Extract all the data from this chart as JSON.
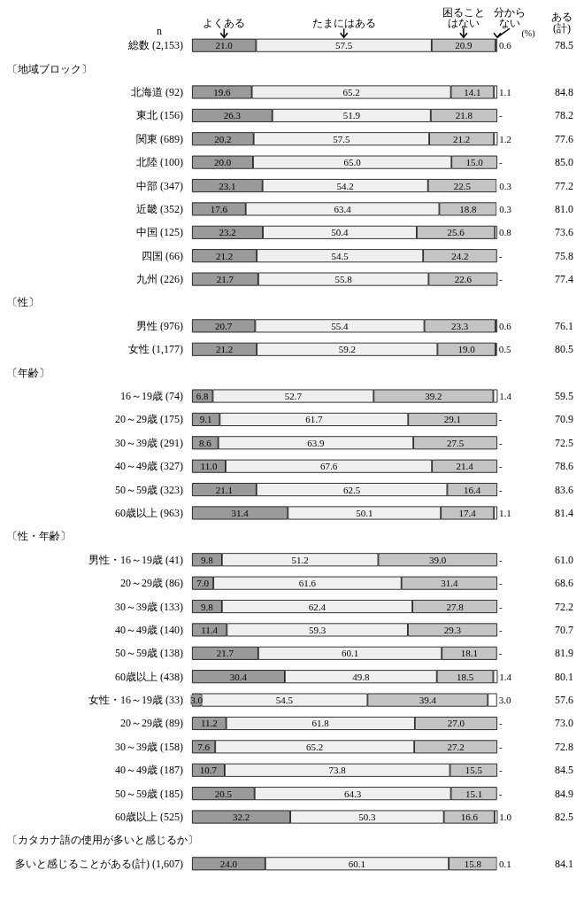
{
  "chart_data": {
    "type": "bar",
    "orientation": "horizontal",
    "stacked": true,
    "xlim": [
      0,
      100
    ],
    "annotations": [
      "n",
      "(%)",
      "ある(計)",
      "〔地域ブロック〕",
      "〔性〕",
      "〔年齢〕",
      "〔性・年齢〕",
      "〔カタカナ語の使用が多いと感じるか〕",
      "78.5",
      "84.8",
      "78.2",
      "77.6",
      "85.0",
      "77.2",
      "81.0",
      "73.6",
      "75.8",
      "77.4",
      "76.1",
      "80.5",
      "59.5",
      "70.9",
      "72.5",
      "78.6",
      "83.6",
      "81.4",
      "61.0",
      "68.6",
      "72.2",
      "70.7",
      "81.9",
      "80.1",
      "57.6",
      "73.0",
      "72.8",
      "84.5",
      "84.9",
      "82.5",
      "84.1"
    ],
    "categories": [
      "総数 (2,153)",
      null,
      "北海道 (92)",
      "東北 (156)",
      "関東 (689)",
      "北陸 (100)",
      "中部 (347)",
      "近畿 (352)",
      "中国 (125)",
      "四国 (66)",
      "九州 (226)",
      null,
      "男性 (976)",
      "女性 (1,177)",
      null,
      "16～19歳 (74)",
      "20～29歳 (175)",
      "30～39歳 (291)",
      "40～49歳 (327)",
      "50～59歳 (323)",
      "60歳以上 (963)",
      null,
      "男性・16～19歳 (41)",
      "20～29歳 (86)",
      "30～39歳 (133)",
      "40～49歳 (140)",
      "50～59歳 (138)",
      "60歳以上 (438)",
      "女性・16～19歳 (33)",
      "20～29歳 (89)",
      "30～39歳 (158)",
      "40～49歳 (187)",
      "50～59歳 (185)",
      "60歳以上 (525)",
      null,
      "多いと感じることがある(計) (1,607)"
    ],
    "series": [
      {
        "name": "よくある",
        "color": "#9a9a9a",
        "values": [
          21.0,
          null,
          19.6,
          26.3,
          20.2,
          20.0,
          23.1,
          17.6,
          23.2,
          21.2,
          21.7,
          null,
          20.7,
          21.2,
          null,
          6.8,
          9.1,
          8.6,
          11.0,
          21.1,
          31.4,
          null,
          9.8,
          7.0,
          9.8,
          11.4,
          21.7,
          30.4,
          3.0,
          11.2,
          7.6,
          10.7,
          20.5,
          32.2,
          null,
          24.0
        ],
        "value_labels": [
          "21.0",
          null,
          "19.6",
          "26.3",
          "20.2",
          "20.0",
          "23.1",
          "17.6",
          "23.2",
          "21.2",
          "21.7",
          null,
          "20.7",
          "21.2",
          null,
          "6.8",
          "9.1",
          "8.6",
          "11.0",
          "21.1",
          "31.4",
          null,
          "9.8",
          "7.0",
          "9.8",
          "11.4",
          "21.7",
          "30.4",
          "3.0",
          "11.2",
          "7.6",
          "10.7",
          "20.5",
          "32.2",
          null,
          "24.0"
        ]
      },
      {
        "name": "たまにはある",
        "color": "#efefef",
        "values": [
          57.5,
          null,
          65.2,
          51.9,
          57.5,
          65.0,
          54.2,
          63.4,
          50.4,
          54.5,
          55.8,
          null,
          55.4,
          59.2,
          null,
          52.7,
          61.7,
          63.9,
          67.6,
          62.5,
          50.1,
          null,
          51.2,
          61.6,
          62.4,
          59.3,
          60.1,
          49.8,
          54.5,
          61.8,
          65.2,
          73.8,
          64.3,
          50.3,
          null,
          60.1
        ],
        "value_labels": [
          "57.5",
          null,
          "65.2",
          "51.9",
          "57.5",
          "65.0",
          "54.2",
          "63.4",
          "50.4",
          "54.5",
          "55.8",
          null,
          "55.4",
          "59.2",
          null,
          "52.7",
          "61.7",
          "63.9",
          "67.6",
          "62.5",
          "50.1",
          null,
          "51.2",
          "61.6",
          "62.4",
          "59.3",
          "60.1",
          "49.8",
          "54.5",
          "61.8",
          "65.2",
          "73.8",
          "64.3",
          "50.3",
          null,
          "60.1"
        ]
      },
      {
        "name": "困ることはない",
        "color": "#c4c4c4",
        "values": [
          20.9,
          null,
          14.1,
          21.8,
          21.2,
          15.0,
          22.5,
          18.8,
          25.6,
          24.2,
          22.6,
          null,
          23.3,
          19.0,
          null,
          39.2,
          29.1,
          27.5,
          21.4,
          16.4,
          17.4,
          null,
          39.0,
          31.4,
          27.8,
          29.3,
          18.1,
          18.5,
          39.4,
          27.0,
          27.2,
          15.5,
          15.1,
          16.6,
          null,
          15.8
        ],
        "value_labels": [
          "20.9",
          null,
          "14.1",
          "21.8",
          "21.2",
          "15.0",
          "22.5",
          "18.8",
          "25.6",
          "24.2",
          "22.6",
          null,
          "23.3",
          "19.0",
          null,
          "39.2",
          "29.1",
          "27.5",
          "21.4",
          "16.4",
          "17.4",
          null,
          "39.0",
          "31.4",
          "27.8",
          "29.3",
          "18.1",
          "18.5",
          "39.4",
          "27.0",
          "27.2",
          "15.5",
          "15.1",
          "16.6",
          null,
          "15.8"
        ]
      },
      {
        "name": "分からない",
        "color": "#ffffff",
        "values": [
          0.6,
          null,
          1.1,
          0,
          1.2,
          0,
          0.3,
          0.3,
          0.8,
          0,
          0,
          null,
          0.6,
          0.5,
          null,
          1.4,
          0,
          0,
          0,
          0,
          1.1,
          null,
          0,
          0,
          0,
          0,
          0,
          1.4,
          3.0,
          0,
          0,
          0,
          0,
          1.0,
          null,
          0.1
        ],
        "value_labels": [
          "0.6",
          null,
          "1.1",
          "-",
          "1.2",
          "-",
          "0.3",
          "0.3",
          "0.8",
          "-",
          "-",
          null,
          "0.6",
          "0.5",
          null,
          "1.4",
          "-",
          "-",
          "-",
          "-",
          "1.1",
          null,
          "-",
          "-",
          "-",
          "-",
          "-",
          "1.4",
          "3.0",
          "-",
          "-",
          "-",
          "-",
          "1.0",
          null,
          "0.1"
        ]
      }
    ]
  }
}
